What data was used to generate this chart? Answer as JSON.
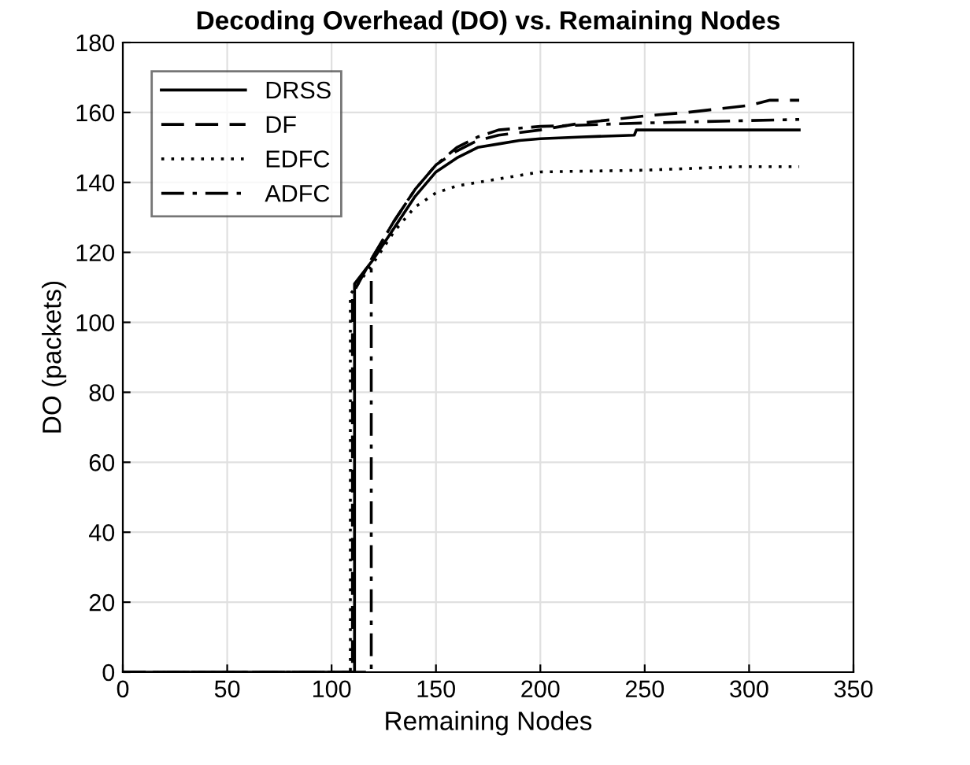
{
  "chart_data": {
    "type": "line",
    "title": "Decoding Overhead (DO) vs. Remaining Nodes",
    "xlabel": "Remaining Nodes",
    "ylabel": "DO (packets)",
    "xlim": [
      0,
      350
    ],
    "xticks": [
      0,
      50,
      100,
      150,
      200,
      250,
      300,
      350
    ],
    "ylim": [
      0,
      180
    ],
    "yticks": [
      0,
      20,
      40,
      60,
      80,
      100,
      120,
      140,
      160,
      180
    ],
    "grid": true,
    "legend": "top left",
    "marker": "none",
    "series": [
      {
        "name": "DRSS",
        "color": "#000000",
        "line_style": "solid",
        "x": [
          0,
          111,
          111,
          120,
          130,
          140,
          150,
          160,
          170,
          180,
          190,
          200,
          220,
          245,
          246,
          324
        ],
        "values": [
          0,
          0,
          111,
          118,
          127,
          136,
          143,
          147,
          150,
          151,
          152,
          152.5,
          153,
          153.5,
          155,
          155
        ]
      },
      {
        "name": "DF",
        "color": "#000000",
        "line_style": "dashed",
        "x": [
          0,
          110,
          110,
          120,
          130,
          140,
          150,
          160,
          170,
          180,
          200,
          220,
          250,
          270,
          300,
          310,
          324
        ],
        "values": [
          0,
          0,
          108,
          119,
          129,
          138,
          145,
          149,
          152,
          153.5,
          155,
          157,
          159,
          160,
          162,
          163.5,
          163.5
        ]
      },
      {
        "name": "EDFC",
        "color": "#000000",
        "line_style": "dotted",
        "x": [
          0,
          109,
          109,
          120,
          130,
          140,
          150,
          160,
          180,
          200,
          250,
          295,
          324
        ],
        "values": [
          0,
          0,
          108,
          117,
          126,
          133,
          137,
          139,
          141,
          143,
          143.5,
          144.5,
          144.5
        ]
      },
      {
        "name": "ADFC",
        "color": "#000000",
        "line_style": "dashdot",
        "x": [
          0,
          119,
          119,
          130,
          140,
          150,
          160,
          170,
          180,
          200,
          250,
          324
        ],
        "values": [
          0,
          0,
          118,
          129,
          138,
          145,
          150,
          153,
          155,
          156,
          157,
          158
        ]
      }
    ]
  }
}
